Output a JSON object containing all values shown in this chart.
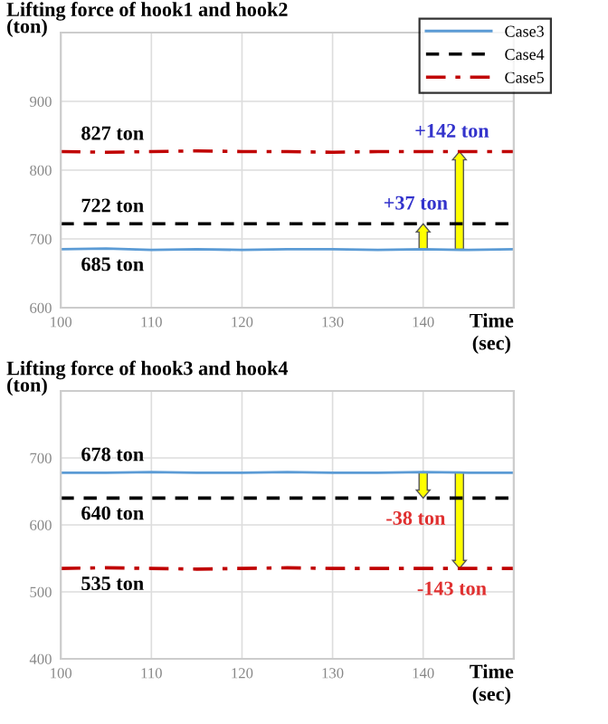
{
  "chart_data": [
    {
      "type": "line",
      "title": "Lifting force of hook1 and hook2",
      "ylabel": "(ton)",
      "xlabel": "Time\n(sec)",
      "x": [
        100,
        105,
        110,
        115,
        120,
        125,
        130,
        135,
        140,
        145,
        150
      ],
      "series": [
        {
          "name": "Case3",
          "color": "#5b9bd5",
          "line_style": "solid",
          "values": [
            685,
            686,
            684,
            685,
            684,
            685,
            685,
            684,
            685,
            684,
            685
          ]
        },
        {
          "name": "Case4",
          "color": "#000000",
          "line_style": "dashed",
          "values": [
            722,
            722,
            722,
            722,
            722,
            722,
            722,
            722,
            722,
            722,
            722
          ]
        },
        {
          "name": "Case5",
          "color": "#c00000",
          "line_style": "dashdot",
          "values": [
            827,
            826,
            827,
            828,
            827,
            827,
            826,
            827,
            827,
            827,
            827
          ]
        }
      ],
      "xlim": [
        100,
        150
      ],
      "xticks": [
        100,
        110,
        120,
        130,
        140
      ],
      "ylim": [
        600,
        1000
      ],
      "yticks": [
        600,
        700,
        800,
        900
      ],
      "grid": true,
      "legend": "top right",
      "annotations": [
        {
          "text": "685 ton",
          "x": 100,
          "y": 685
        },
        {
          "text": "722 ton",
          "x": 100,
          "y": 722
        },
        {
          "text": "827 ton",
          "x": 100,
          "y": 827
        },
        {
          "text": "+37 ton",
          "x": 140,
          "y": 722
        },
        {
          "text": "+142 ton",
          "x": 144,
          "y": 827
        }
      ]
    },
    {
      "type": "line",
      "title": "Lifting force of hook3 and hook4",
      "ylabel": "(ton)",
      "xlabel": "Time\n(sec)",
      "x": [
        100,
        105,
        110,
        115,
        120,
        125,
        130,
        135,
        140,
        145,
        150
      ],
      "series": [
        {
          "color": "#5b9bd5",
          "line_style": "solid",
          "values": [
            678,
            678,
            679,
            678,
            678,
            679,
            678,
            678,
            679,
            678,
            678
          ]
        },
        {
          "color": "#000000",
          "line_style": "dashed",
          "values": [
            640,
            640,
            640,
            640,
            640,
            640,
            640,
            640,
            640,
            640,
            640
          ]
        },
        {
          "color": "#c00000",
          "line_style": "dashdot",
          "values": [
            535,
            536,
            535,
            534,
            535,
            536,
            535,
            535,
            535,
            535,
            535
          ]
        }
      ],
      "xlim": [
        100,
        150
      ],
      "xticks": [
        100,
        110,
        120,
        130,
        140
      ],
      "ylim": [
        400,
        800
      ],
      "yticks": [
        400,
        500,
        600,
        700
      ],
      "grid": true,
      "legend": false,
      "annotations": [
        {
          "text": "678 ton",
          "x": 100,
          "y": 678
        },
        {
          "text": "640 ton",
          "x": 100,
          "y": 640
        },
        {
          "text": "535 ton",
          "x": 100,
          "y": 535
        },
        {
          "text": "-38 ton",
          "x": 140,
          "y": 640
        },
        {
          "text": "-143 ton",
          "x": 144,
          "y": 535
        }
      ]
    }
  ]
}
